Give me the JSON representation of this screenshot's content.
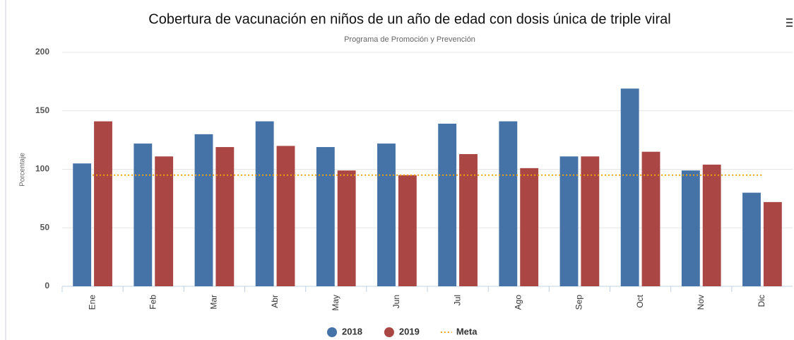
{
  "chart_data": {
    "type": "bar",
    "title": "Cobertura de vacunación en niños de un año de edad con dosis única de triple viral",
    "subtitle": "Programa de Promoción y Prevención",
    "y_label": "Porcentaje",
    "categories": [
      "Ene",
      "Feb",
      "Mar",
      "Abr",
      "May",
      "Jun",
      "Jul",
      "Ago",
      "Sep",
      "Oct",
      "Nov",
      "Dic"
    ],
    "series": [
      {
        "name": "2018",
        "color": "#4572a7",
        "values": [
          105,
          122,
          130,
          141,
          119,
          122,
          139,
          141,
          111,
          169,
          99,
          80
        ]
      },
      {
        "name": "2019",
        "color": "#aa4643",
        "values": [
          141,
          111,
          119,
          120,
          99,
          95,
          113,
          101,
          111,
          115,
          104,
          72
        ]
      },
      {
        "name": "Meta",
        "color": "#f0a30a",
        "type": "line",
        "values": [
          95,
          95,
          95,
          95,
          95,
          95,
          95,
          95,
          95,
          95,
          95,
          95
        ]
      }
    ],
    "ylim": [
      0,
      200
    ],
    "yticks": [
      0,
      50,
      100,
      150,
      200
    ],
    "grid": true,
    "legend": "bottom"
  }
}
